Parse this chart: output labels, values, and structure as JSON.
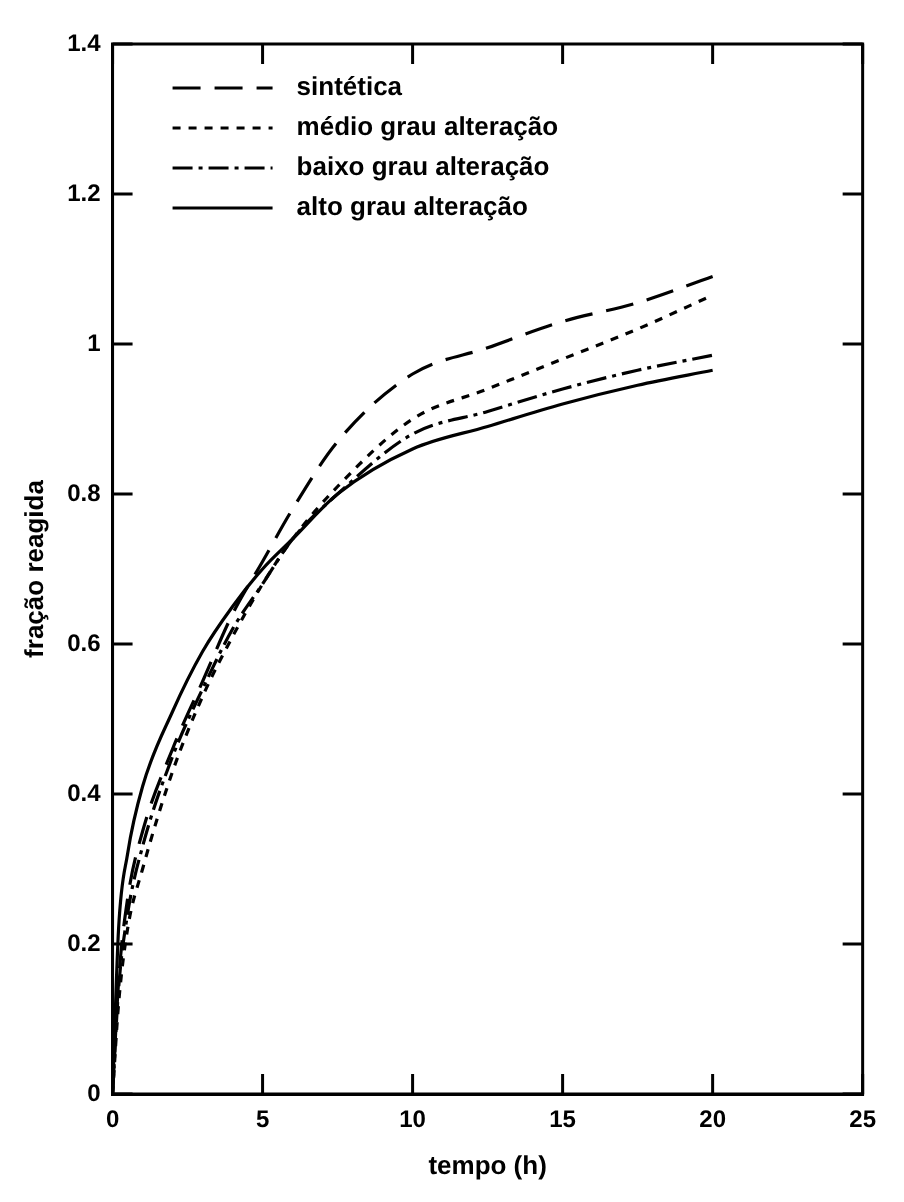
{
  "chart_data": {
    "type": "line",
    "xlabel": "tempo (h)",
    "ylabel": "fração reagida",
    "xlim": [
      0,
      25
    ],
    "ylim": [
      0,
      1.4
    ],
    "xticks": [
      0,
      5,
      10,
      15,
      20,
      25
    ],
    "yticks": [
      0,
      0.2,
      0.4,
      0.6,
      0.8,
      1.0,
      1.2,
      1.4
    ],
    "grid": false,
    "legend": "top left",
    "marker": "none",
    "series": [
      {
        "name": "sintética",
        "color": "#000000",
        "line_style": "dashed",
        "x": [
          0,
          0.2,
          0.5,
          1,
          2,
          3,
          4,
          5,
          6,
          7.5,
          10,
          12.5,
          15,
          17.5,
          20
        ],
        "values": [
          0,
          0.15,
          0.26,
          0.35,
          0.46,
          0.55,
          0.64,
          0.71,
          0.78,
          0.87,
          0.96,
          0.995,
          1.03,
          1.055,
          1.09
        ]
      },
      {
        "name": "médio grau alteração",
        "color": "#000000",
        "line_style": "dotted",
        "x": [
          0,
          0.2,
          0.5,
          1,
          2,
          3,
          4,
          5,
          6,
          7.5,
          10,
          12.5,
          15,
          17.5,
          20
        ],
        "values": [
          0,
          0.12,
          0.22,
          0.3,
          0.43,
          0.53,
          0.61,
          0.68,
          0.74,
          0.81,
          0.9,
          0.94,
          0.98,
          1.02,
          1.065
        ]
      },
      {
        "name": "baixo grau alteração",
        "color": "#000000",
        "line_style": "dashed",
        "x": [
          0,
          0.2,
          0.5,
          1,
          2,
          3,
          4,
          5,
          6,
          7.5,
          10,
          12.5,
          15,
          17.5,
          20
        ],
        "values": [
          0,
          0.14,
          0.24,
          0.33,
          0.45,
          0.54,
          0.62,
          0.68,
          0.74,
          0.8,
          0.88,
          0.91,
          0.94,
          0.965,
          0.985
        ]
      },
      {
        "name": "alto grau alteração",
        "color": "#000000",
        "line_style": "solid",
        "x": [
          0,
          0.2,
          0.5,
          1,
          2,
          3,
          4,
          5,
          6,
          7.5,
          10,
          12.5,
          15,
          17.5,
          20
        ],
        "values": [
          0,
          0.22,
          0.32,
          0.41,
          0.51,
          0.59,
          0.65,
          0.7,
          0.74,
          0.8,
          0.86,
          0.89,
          0.92,
          0.945,
          0.965
        ]
      }
    ]
  }
}
